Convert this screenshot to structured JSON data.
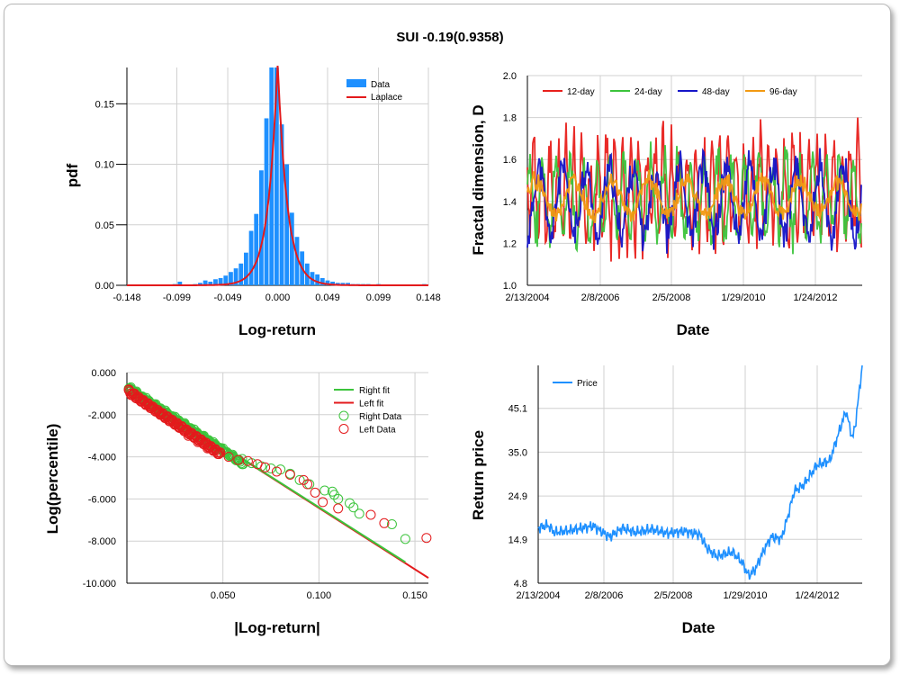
{
  "title": "SUI -0.19(0.9358)",
  "chart_data": [
    {
      "type": "bar",
      "id": "pdf",
      "xlabel": "Log-return",
      "ylabel": "pdf",
      "xlim": [
        -0.148,
        0.148
      ],
      "ylim": [
        0,
        0.18
      ],
      "xticks": [
        "-0.148",
        "-0.099",
        "-0.049",
        "0.000",
        "0.049",
        "0.099",
        "0.148"
      ],
      "yticks": [
        "0.00",
        "0.05",
        "0.10",
        "0.15"
      ],
      "legend": [
        "Data",
        "Laplace"
      ],
      "colors": {
        "bars": "#1e90ff",
        "fit": "#e31a1c"
      },
      "bins": [
        -0.146,
        -0.141,
        -0.136,
        -0.131,
        -0.126,
        -0.121,
        -0.116,
        -0.111,
        -0.106,
        -0.101,
        -0.096,
        -0.091,
        -0.086,
        -0.081,
        -0.076,
        -0.071,
        -0.066,
        -0.061,
        -0.056,
        -0.051,
        -0.046,
        -0.041,
        -0.036,
        -0.031,
        -0.026,
        -0.021,
        -0.016,
        -0.011,
        -0.006,
        -0.001,
        0.004,
        0.009,
        0.014,
        0.019,
        0.024,
        0.029,
        0.034,
        0.039,
        0.044,
        0.049,
        0.054,
        0.059,
        0.064,
        0.069,
        0.074,
        0.079,
        0.084,
        0.089,
        0.094,
        0.099,
        0.104,
        0.109,
        0.114,
        0.119,
        0.124,
        0.129,
        0.134,
        0.139,
        0.144
      ],
      "values": [
        0,
        0,
        0,
        0,
        0,
        0,
        0,
        0,
        0,
        0.001,
        0.003,
        0,
        0,
        0.001,
        0.002,
        0.004,
        0.003,
        0.005,
        0.006,
        0.008,
        0.011,
        0.014,
        0.018,
        0.027,
        0.045,
        0.059,
        0.095,
        0.138,
        0.183,
        0.183,
        0.133,
        0.1,
        0.06,
        0.04,
        0.028,
        0.018,
        0.011,
        0.009,
        0.006,
        0.004,
        0.003,
        0.002,
        0.002,
        0.002,
        0.001,
        0.001,
        0.001,
        0.001,
        0,
        0.001,
        0,
        0,
        0,
        0,
        0,
        0,
        0,
        0,
        0.001
      ],
      "fit": {
        "mu": 0.0,
        "b": 0.0028,
        "peak": 0.185
      }
    },
    {
      "type": "line",
      "id": "fractal",
      "xlabel": "Date",
      "ylabel": "Fractal dimension, D",
      "ylim": [
        1.0,
        2.0
      ],
      "xticks": [
        "2/13/2004",
        "2/8/2006",
        "2/5/2008",
        "1/29/2010",
        "1/24/2012"
      ],
      "yticks": [
        "1.0",
        "1.2",
        "1.4",
        "1.6",
        "1.8",
        "2.0"
      ],
      "series": [
        {
          "name": "12-day",
          "color": "#e8201c",
          "mean": 1.45,
          "amp": 0.28,
          "period": 9,
          "seed": 3
        },
        {
          "name": "24-day",
          "color": "#3cc43c",
          "mean": 1.42,
          "amp": 0.22,
          "period": 15,
          "seed": 7
        },
        {
          "name": "48-day",
          "color": "#1515c8",
          "mean": 1.4,
          "amp": 0.2,
          "period": 26,
          "seed": 11
        },
        {
          "name": "96-day",
          "color": "#f29a12",
          "mean": 1.42,
          "amp": 0.1,
          "period": 42,
          "seed": 19
        }
      ]
    },
    {
      "type": "scatter",
      "id": "tail",
      "xlabel": "|Log-return|",
      "ylabel": "Log(percentile)",
      "xlim": [
        0,
        0.157
      ],
      "ylim": [
        -10,
        0
      ],
      "xticks": [
        "0.050",
        "0.100",
        "0.150"
      ],
      "yticks": [
        "0.000",
        "-2.000",
        "-4.000",
        "-6.000",
        "-8.000",
        "-10.000"
      ],
      "legend": [
        "Right fit",
        "Left fit",
        "Right Data",
        "Left Data"
      ],
      "colors": {
        "right": "#3cc43c",
        "left": "#e31a1c"
      },
      "right_fit": [
        [
          0.0,
          -0.6
        ],
        [
          0.145,
          -9.0
        ]
      ],
      "left_fit": [
        [
          0.0,
          -0.6
        ],
        [
          0.157,
          -9.75
        ]
      ],
      "right_points": [
        [
          0.002,
          -0.7
        ],
        [
          0.005,
          -0.9
        ],
        [
          0.01,
          -1.2
        ],
        [
          0.015,
          -1.5
        ],
        [
          0.02,
          -1.8
        ],
        [
          0.025,
          -2.1
        ],
        [
          0.03,
          -2.4
        ],
        [
          0.035,
          -2.7
        ],
        [
          0.04,
          -3.0
        ],
        [
          0.045,
          -3.3
        ],
        [
          0.05,
          -3.6
        ],
        [
          0.055,
          -3.9
        ],
        [
          0.06,
          -4.1
        ],
        [
          0.065,
          -4.3
        ],
        [
          0.07,
          -4.45
        ],
        [
          0.075,
          -4.55
        ],
        [
          0.08,
          -4.6
        ],
        [
          0.085,
          -4.8
        ],
        [
          0.09,
          -5.1
        ],
        [
          0.095,
          -5.3
        ],
        [
          0.103,
          -5.6
        ],
        [
          0.107,
          -5.65
        ],
        [
          0.108,
          -5.8
        ],
        [
          0.11,
          -6.0
        ],
        [
          0.116,
          -6.2
        ],
        [
          0.118,
          -6.4
        ],
        [
          0.121,
          -6.7
        ],
        [
          0.138,
          -7.2
        ],
        [
          0.145,
          -7.9
        ]
      ],
      "left_points": [
        [
          0.001,
          -0.8
        ],
        [
          0.004,
          -1.0
        ],
        [
          0.008,
          -1.3
        ],
        [
          0.012,
          -1.6
        ],
        [
          0.017,
          -1.9
        ],
        [
          0.022,
          -2.3
        ],
        [
          0.027,
          -2.6
        ],
        [
          0.032,
          -3.0
        ],
        [
          0.037,
          -3.3
        ],
        [
          0.042,
          -3.6
        ],
        [
          0.047,
          -3.8
        ],
        [
          0.053,
          -4.0
        ],
        [
          0.058,
          -4.15
        ],
        [
          0.063,
          -4.2
        ],
        [
          0.068,
          -4.35
        ],
        [
          0.072,
          -4.5
        ],
        [
          0.078,
          -4.7
        ],
        [
          0.085,
          -4.85
        ],
        [
          0.092,
          -5.1
        ],
        [
          0.094,
          -5.3
        ],
        [
          0.098,
          -5.7
        ],
        [
          0.102,
          -6.15
        ],
        [
          0.11,
          -6.45
        ],
        [
          0.127,
          -6.75
        ],
        [
          0.134,
          -7.15
        ],
        [
          0.156,
          -7.85
        ]
      ]
    },
    {
      "type": "line",
      "id": "price",
      "xlabel": "Date",
      "ylabel": "Return price",
      "ylim": [
        4.8,
        55
      ],
      "xticks": [
        "2/13/2004",
        "2/8/2006",
        "2/5/2008",
        "1/29/2010",
        "1/24/2012"
      ],
      "yticks": [
        "4.8",
        "14.9",
        "24.9",
        "35.0",
        "45.1"
      ],
      "legend": [
        "Price"
      ],
      "color": "#1e90ff",
      "keypoints": [
        [
          0,
          17.5
        ],
        [
          0.03,
          18.2
        ],
        [
          0.05,
          16.5
        ],
        [
          0.1,
          17.0
        ],
        [
          0.17,
          18.0
        ],
        [
          0.22,
          15.5
        ],
        [
          0.26,
          17.5
        ],
        [
          0.3,
          16.5
        ],
        [
          0.35,
          17.2
        ],
        [
          0.4,
          16.3
        ],
        [
          0.45,
          16.8
        ],
        [
          0.5,
          16.0
        ],
        [
          0.52,
          13.0
        ],
        [
          0.55,
          11.0
        ],
        [
          0.6,
          12.0
        ],
        [
          0.63,
          9.5
        ],
        [
          0.65,
          6.5
        ],
        [
          0.67,
          8.0
        ],
        [
          0.7,
          13.0
        ],
        [
          0.72,
          15.5
        ],
        [
          0.75,
          15.0
        ],
        [
          0.77,
          20.0
        ],
        [
          0.79,
          26.0
        ],
        [
          0.82,
          27.5
        ],
        [
          0.86,
          32.0
        ],
        [
          0.9,
          33.0
        ],
        [
          0.93,
          40.0
        ],
        [
          0.95,
          44.5
        ],
        [
          0.97,
          38.0
        ],
        [
          0.98,
          42.0
        ],
        [
          1.0,
          55.0
        ]
      ]
    }
  ]
}
